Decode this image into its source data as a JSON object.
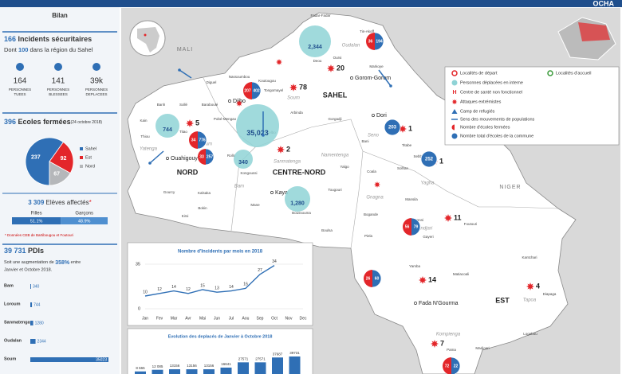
{
  "header": {
    "logo": "OCHA"
  },
  "sidebar": {
    "title": "Bilan",
    "incidents": {
      "count": "166",
      "label": "Incidents sécuritaires",
      "prefix": "Dont",
      "sahel_count": "100",
      "suffix": "dans la région du Sahel"
    },
    "stats": [
      {
        "value": "164",
        "label1": "PERSONNES",
        "label2": "TUEES"
      },
      {
        "value": "141",
        "label1": "PERSONNES",
        "label2": "BLESSEES"
      },
      {
        "value": "39k",
        "label1": "PERSONNES",
        "label2": "DEPLACEES"
      }
    ],
    "schools": {
      "count": "396",
      "label": "Ecoles fermées",
      "date": "(24 octobre 2018)"
    },
    "pupils": {
      "count": "3 309",
      "label": "Elèves affectés",
      "star": "*",
      "note": "* Données CEB de Bartibougou et Foutouri"
    },
    "pdi": {
      "count": "39 731",
      "label": "PDIs",
      "text1": "Soit une augmentation de",
      "pct": "358%",
      "text1b": "entre",
      "text2": "Janvier et Octobre 2018."
    }
  },
  "chart_data": [
    {
      "type": "pie",
      "categories": [
        "Sahel",
        "Est",
        "Nord"
      ],
      "values": [
        237,
        92,
        67
      ],
      "colors": [
        "#2f6fb5",
        "#e3262a",
        "#b5b7ba"
      ]
    },
    {
      "type": "split",
      "categories": [
        "Filles",
        "Garçons"
      ],
      "values": [
        51.1,
        48.9
      ],
      "value_labels": [
        "51.1%",
        "48.9%"
      ],
      "colors": [
        "#2f6fb5",
        "#4f8fd0"
      ]
    },
    {
      "type": "hbar",
      "categories": [
        "Bam",
        "Loroum",
        "Sanmatenga",
        "Oudalan",
        "Soum"
      ],
      "values": [
        340,
        744,
        1280,
        2344,
        35023
      ],
      "color": "#2f6fb5"
    },
    {
      "type": "line",
      "title": "Nombre d'Incidents par mois en 2018",
      "categories": [
        "Jan",
        "Fev",
        "Mar",
        "Avr",
        "Mai",
        "Jun",
        "Jul",
        "Aou",
        "Sep",
        "Oct",
        "Nov",
        "Dec"
      ],
      "values": [
        10,
        12,
        14,
        12,
        15,
        13,
        14,
        16,
        27,
        34,
        null,
        null
      ],
      "color": "#2f6fb5",
      "ylim": [
        0,
        35
      ],
      "yticks": [
        0,
        35
      ]
    },
    {
      "type": "bar",
      "title": "Evolution des deplacés de Janvier à Octobre 2018",
      "values": [
        8665,
        12085,
        13156,
        13156,
        13156,
        16641,
        27571,
        27571,
        37687,
        39731
      ],
      "value_labels": [
        "8 665",
        "12 085",
        "13156",
        "13156",
        "13156",
        "16641",
        "27571",
        "27571",
        "37687",
        "39731"
      ],
      "color": "#2f6fb5"
    }
  ],
  "map": {
    "countries": [
      "MALI",
      "NIGER"
    ],
    "regions": [
      "SAHEL",
      "NORD",
      "CENTRE-NORD",
      "EST"
    ],
    "towns": [
      "Djibo",
      "Dori",
      "Kaya",
      "Ouahigouya",
      "Gorom-Gorom",
      "Fada N'Gourma"
    ],
    "provinces": [
      "Oudalan",
      "Soum",
      "Seno",
      "Yatenga",
      "Loroum",
      "Sanmatenga",
      "Namentenga",
      "Bam",
      "Yagha",
      "Gnagna",
      "Komandjari",
      "Tapoa",
      "Kompienga"
    ],
    "communes": [
      "Fadar-Fadar",
      "Tin-Akoff",
      "Markoye",
      "Oursi",
      "Deou",
      "Nassoumbou",
      "Koutougou",
      "Diguel",
      "Baraboulé",
      "Arbinda",
      "Tongomayel",
      "Kelbo",
      "Pobé-Mengao",
      "Banh",
      "Sollé",
      "Titao",
      "Kain",
      "Thiou",
      "Rollo",
      "Kongoussi",
      "Gorgadji",
      "Bani",
      "Titabe",
      "Sebba",
      "Solhan",
      "Mansila",
      "Yalgo",
      "Coala",
      "Tougouri",
      "Bogande",
      "Piela",
      "Manni",
      "Gayeri",
      "Foutouri",
      "Boussouma",
      "Mane",
      "Boulsa",
      "Gourcy",
      "Kalsaka",
      "Bokin",
      "Kirsi",
      "Yamba",
      "Matiacoali",
      "Pama",
      "Madjoari",
      "Kantchari",
      "Diapaga",
      "Logobou"
    ],
    "attacks": [
      5,
      78,
      20,
      2,
      1,
      1,
      11,
      14,
      4,
      7
    ],
    "displaced": {
      "values": [
        744,
        35023,
        340,
        2344,
        1280
      ],
      "value_labels": [
        "744",
        "35,023",
        "340",
        "2,344",
        "1,280"
      ]
    },
    "schools": {
      "closed": [
        34,
        33,
        207,
        36,
        null,
        null,
        56,
        26,
        72
      ],
      "total": [
        776,
        257,
        402,
        194,
        203,
        252,
        79,
        60,
        22
      ]
    },
    "legend": [
      "Localités de départ",
      "Localités d'accueil",
      "Personnes déplacées en interne",
      "Centre de santé non fonctionnel",
      "Attaques extrémistes",
      "Camp de refugiés",
      "Sens des mouvements de populations",
      "Nombre d'écoles fermées",
      "Nombre total d'écoles de la commune"
    ]
  }
}
